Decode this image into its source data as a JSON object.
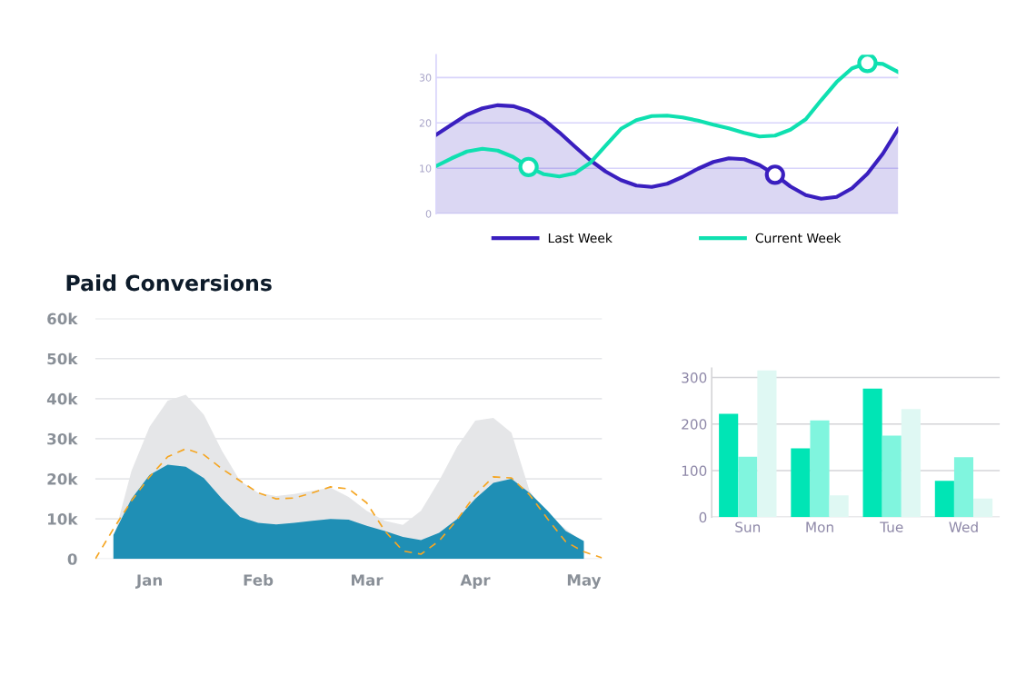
{
  "chart_data": [
    {
      "type": "area",
      "title": "Paid Conversions",
      "ylim": [
        0,
        60000
      ],
      "grid": "y",
      "categories": [
        null,
        null,
        null,
        "Jan",
        null,
        null,
        null,
        null,
        null,
        "Feb",
        null,
        null,
        null,
        null,
        null,
        "Mar",
        null,
        null,
        null,
        null,
        null,
        "Apr",
        null,
        null,
        null,
        null,
        null,
        "May",
        null
      ],
      "yticks": [
        {
          "value": 0,
          "label": "0"
        },
        {
          "value": 10000,
          "label": "10k"
        },
        {
          "value": 20000,
          "label": "20k"
        },
        {
          "value": 30000,
          "label": "30k"
        },
        {
          "value": 40000,
          "label": "40k"
        },
        {
          "value": 50000,
          "label": "50k"
        },
        {
          "value": 60000,
          "label": "60k"
        }
      ],
      "series": [
        {
          "type": "area",
          "color": "#e5e6e8",
          "values": [
            null,
            5000,
            22000,
            33000,
            39500,
            41000,
            36000,
            27000,
            19500,
            16500,
            15700,
            16200,
            17000,
            17800,
            15500,
            12000,
            9500,
            8500,
            12000,
            19500,
            28000,
            34500,
            35200,
            31500,
            17000,
            11000,
            7500,
            4000,
            null
          ]
        },
        {
          "type": "area",
          "color": "#1f8fb5",
          "values": [
            null,
            6000,
            15000,
            21000,
            23500,
            23000,
            20200,
            15000,
            10500,
            9000,
            8600,
            9000,
            9500,
            10000,
            9800,
            8300,
            7000,
            5500,
            4700,
            6500,
            10000,
            15000,
            19000,
            20000,
            16500,
            12000,
            7000,
            4500,
            null
          ]
        },
        {
          "type": "line",
          "color": "#f5a623",
          "line_style": "dashed",
          "values": [
            0,
            7500,
            14500,
            20500,
            25500,
            27500,
            26000,
            22500,
            19500,
            16500,
            15000,
            15200,
            16500,
            18000,
            17500,
            14000,
            7000,
            2000,
            1200,
            4500,
            9800,
            16000,
            20500,
            20200,
            16000,
            10000,
            4300,
            1800,
            300
          ]
        }
      ]
    },
    {
      "type": "line",
      "ylim": [
        0,
        35
      ],
      "grid": "y",
      "tick_labels": "y",
      "legend": "bottom",
      "categories": [
        null,
        null,
        null,
        null,
        null,
        null,
        null,
        null,
        null,
        null,
        null,
        null,
        null,
        null,
        null,
        null,
        null,
        null,
        null,
        null,
        null,
        null,
        null,
        null,
        null,
        null,
        null,
        null,
        null,
        null,
        null
      ],
      "yticks": [
        0,
        10,
        20,
        30
      ],
      "series": [
        {
          "type": "area",
          "name": "Last Week",
          "color": "#3a1fbf",
          "values": [
            17.4,
            19.6,
            21.8,
            23.2,
            23.9,
            23.7,
            22.6,
            20.7,
            17.9,
            14.8,
            11.8,
            9.3,
            7.4,
            6.2,
            5.9,
            6.6,
            8.1,
            9.9,
            11.4,
            12.2,
            12,
            10.7,
            8.6,
            6,
            4.1,
            3.3,
            3.7,
            5.6,
            8.8,
            13.2,
            18.7
          ]
        },
        {
          "type": "line",
          "name": "Current Week",
          "color": "#0fe0b0",
          "values": [
            10.5,
            12.2,
            13.7,
            14.3,
            13.9,
            12.5,
            10.3,
            8.7,
            8.2,
            8.9,
            11.2,
            15,
            18.7,
            20.6,
            21.5,
            21.6,
            21.2,
            20.5,
            19.6,
            18.8,
            17.8,
            17,
            17.2,
            18.5,
            20.8,
            25,
            29,
            32,
            33.2,
            33,
            31.2
          ]
        },
        {
          "type": "scatter",
          "color": "#0fe0b0",
          "marker": "circle",
          "values": [
            null,
            null,
            null,
            null,
            null,
            null,
            10.3,
            null,
            null,
            null,
            null,
            null,
            null,
            null,
            null,
            null,
            null,
            null,
            null,
            null,
            null,
            null,
            null,
            null,
            null,
            null,
            null,
            null,
            33.2,
            null,
            null
          ]
        },
        {
          "type": "scatter",
          "color": "#3a1fbf",
          "marker": "circle",
          "values": [
            null,
            null,
            null,
            null,
            null,
            null,
            null,
            null,
            null,
            null,
            null,
            null,
            null,
            null,
            null,
            null,
            null,
            null,
            null,
            null,
            null,
            null,
            8.6,
            null,
            null,
            null,
            null,
            null,
            null,
            null,
            null
          ]
        }
      ]
    },
    {
      "type": "bar",
      "categories": [
        "Sun",
        "Mon",
        "Tue",
        "Wed"
      ],
      "ylim": [
        0,
        320
      ],
      "grid": "y",
      "yticks": [
        0,
        100,
        200,
        300
      ],
      "series": [
        {
          "color": "#00e5b5",
          "values": [
            222,
            148,
            276,
            78
          ]
        },
        {
          "color": "#80f5de",
          "values": [
            130,
            208,
            175,
            129
          ]
        },
        {
          "color": "#dff8f3",
          "values": [
            315,
            47,
            232,
            40
          ]
        }
      ]
    }
  ]
}
